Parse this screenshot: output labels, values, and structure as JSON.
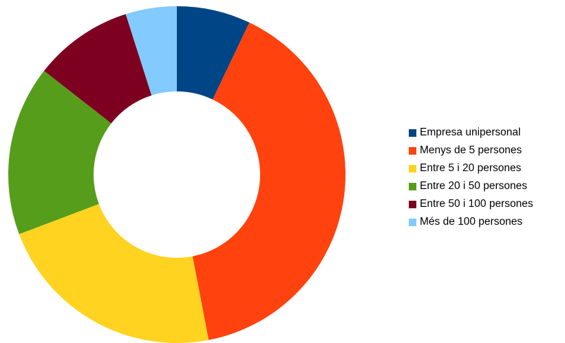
{
  "chart_data": {
    "type": "pie",
    "variant": "donut",
    "title": "",
    "legend_position": "right",
    "slices": [
      {
        "label": "Empresa unipersonal",
        "value": 7.5,
        "color": "#004586"
      },
      {
        "label": "Menys de 5 persones",
        "value": 42.3,
        "color": "#ff420e"
      },
      {
        "label": "Entre 5 i 20 persones",
        "value": 23.6,
        "color": "#ffd320"
      },
      {
        "label": "Entre 20 i 50 persones",
        "value": 17.3,
        "color": "#579d1c"
      },
      {
        "label": "Entre 50 i 100 persones",
        "value": 10.1,
        "color": "#7e0021"
      },
      {
        "label": "Més de 100 persones",
        "value": 5.2,
        "color": "#83caff"
      }
    ]
  }
}
